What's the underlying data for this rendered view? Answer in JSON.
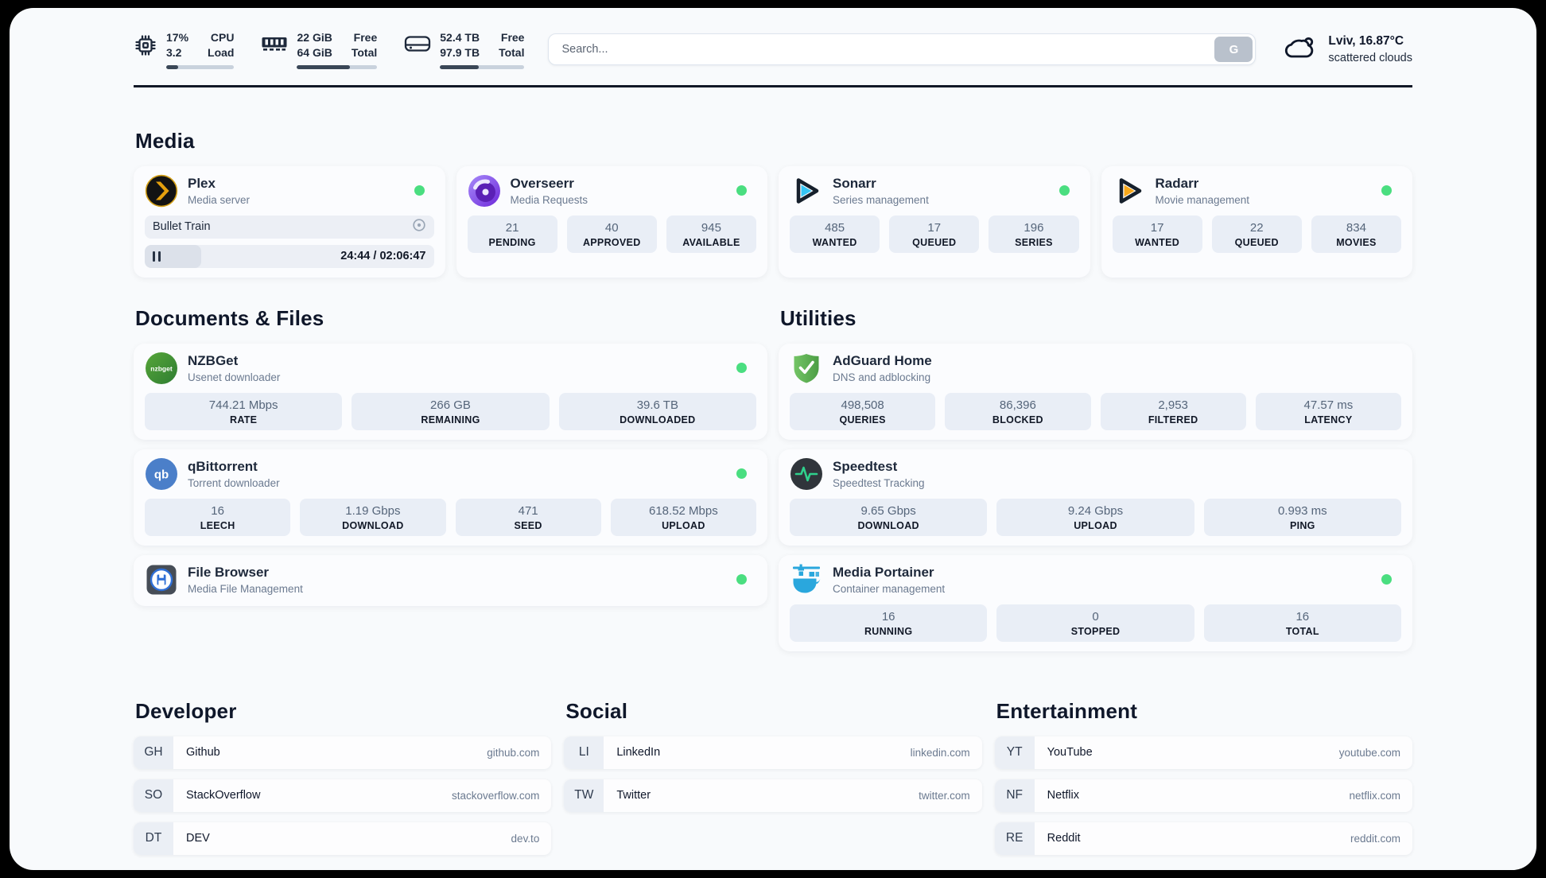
{
  "header": {
    "resources": [
      {
        "icon": "cpu-icon",
        "value_top": "17%",
        "value_bottom": "3.2",
        "label_top": "CPU",
        "label_bottom": "Load",
        "progress_pct": 17
      },
      {
        "icon": "memory-icon",
        "value_top": "22 GiB",
        "value_bottom": "64 GiB",
        "label_top": "Free",
        "label_bottom": "Total",
        "progress_pct": 66
      },
      {
        "icon": "disk-icon",
        "value_top": "52.4 TB",
        "value_bottom": "97.9 TB",
        "label_top": "Free",
        "label_bottom": "Total",
        "progress_pct": 46
      }
    ],
    "search": {
      "placeholder": "Search...",
      "button": "G"
    },
    "weather": {
      "icon": "cloud-icon",
      "summary": "Lviv, 16.87°C",
      "condition": "scattered clouds"
    }
  },
  "sections": {
    "media": {
      "title": "Media",
      "services": [
        {
          "icon": "plex-icon",
          "name": "Plex",
          "description": "Media server",
          "online": true,
          "now_playing": {
            "title": "Bullet Train",
            "time_display": "24:44 / 02:06:47",
            "progress_pct": 19.5
          }
        },
        {
          "icon": "overseerr-icon",
          "name": "Overseerr",
          "description": "Media Requests",
          "online": true,
          "stats": [
            {
              "value": "21",
              "label": "PENDING"
            },
            {
              "value": "40",
              "label": "APPROVED"
            },
            {
              "value": "945",
              "label": "AVAILABLE"
            }
          ]
        },
        {
          "icon": "sonarr-icon",
          "name": "Sonarr",
          "description": "Series management",
          "online": true,
          "stats": [
            {
              "value": "485",
              "label": "WANTED"
            },
            {
              "value": "17",
              "label": "QUEUED"
            },
            {
              "value": "196",
              "label": "SERIES"
            }
          ]
        },
        {
          "icon": "radarr-icon",
          "name": "Radarr",
          "description": "Movie management",
          "online": true,
          "stats": [
            {
              "value": "17",
              "label": "WANTED"
            },
            {
              "value": "22",
              "label": "QUEUED"
            },
            {
              "value": "834",
              "label": "MOVIES"
            }
          ]
        }
      ]
    },
    "documents": {
      "title": "Documents & Files",
      "services": [
        {
          "icon": "nzbget-icon",
          "icon_text": "nzbget",
          "name": "NZBGet",
          "description": "Usenet downloader",
          "online": true,
          "stats": [
            {
              "value": "744.21 Mbps",
              "label": "RATE"
            },
            {
              "value": "266 GB",
              "label": "REMAINING"
            },
            {
              "value": "39.6 TB",
              "label": "DOWNLOADED"
            }
          ]
        },
        {
          "icon": "qbittorrent-icon",
          "icon_text": "qb",
          "name": "qBittorrent",
          "description": "Torrent downloader",
          "online": true,
          "stats": [
            {
              "value": "16",
              "label": "LEECH"
            },
            {
              "value": "1.19 Gbps",
              "label": "DOWNLOAD"
            },
            {
              "value": "471",
              "label": "SEED"
            },
            {
              "value": "618.52 Mbps",
              "label": "UPLOAD"
            }
          ]
        },
        {
          "icon": "filebrowser-icon",
          "name": "File Browser",
          "description": "Media File Management",
          "online": true
        }
      ]
    },
    "utilities": {
      "title": "Utilities",
      "services": [
        {
          "icon": "adguard-icon",
          "name": "AdGuard Home",
          "description": "DNS and adblocking",
          "online": false,
          "stats": [
            {
              "value": "498,508",
              "label": "QUERIES"
            },
            {
              "value": "86,396",
              "label": "BLOCKED"
            },
            {
              "value": "2,953",
              "label": "FILTERED"
            },
            {
              "value": "47.57 ms",
              "label": "LATENCY"
            }
          ]
        },
        {
          "icon": "speedtest-icon",
          "name": "Speedtest",
          "description": "Speedtest Tracking",
          "online": false,
          "stats": [
            {
              "value": "9.65 Gbps",
              "label": "DOWNLOAD"
            },
            {
              "value": "9.24 Gbps",
              "label": "UPLOAD"
            },
            {
              "value": "0.993 ms",
              "label": "PING"
            }
          ]
        },
        {
          "icon": "portainer-icon",
          "name": "Media Portainer",
          "description": "Container management",
          "online": true,
          "stats": [
            {
              "value": "16",
              "label": "RUNNING"
            },
            {
              "value": "0",
              "label": "STOPPED"
            },
            {
              "value": "16",
              "label": "TOTAL"
            }
          ]
        }
      ]
    },
    "bookmarks": [
      {
        "title": "Developer",
        "links": [
          {
            "abbr": "GH",
            "name": "Github",
            "url": "github.com"
          },
          {
            "abbr": "SO",
            "name": "StackOverflow",
            "url": "stackoverflow.com"
          },
          {
            "abbr": "DT",
            "name": "DEV",
            "url": "dev.to"
          }
        ]
      },
      {
        "title": "Social",
        "links": [
          {
            "abbr": "LI",
            "name": "LinkedIn",
            "url": "linkedin.com"
          },
          {
            "abbr": "TW",
            "name": "Twitter",
            "url": "twitter.com"
          }
        ]
      },
      {
        "title": "Entertainment",
        "links": [
          {
            "abbr": "YT",
            "name": "YouTube",
            "url": "youtube.com"
          },
          {
            "abbr": "NF",
            "name": "Netflix",
            "url": "netflix.com"
          },
          {
            "abbr": "RE",
            "name": "Reddit",
            "url": "reddit.com"
          }
        ]
      }
    ]
  },
  "colors": {
    "status_online": "#4ade80",
    "page_background": "#f8fafc",
    "stat_block": "#e9eef6",
    "text_primary": "#1e293b",
    "text_secondary": "#6b7a90"
  }
}
